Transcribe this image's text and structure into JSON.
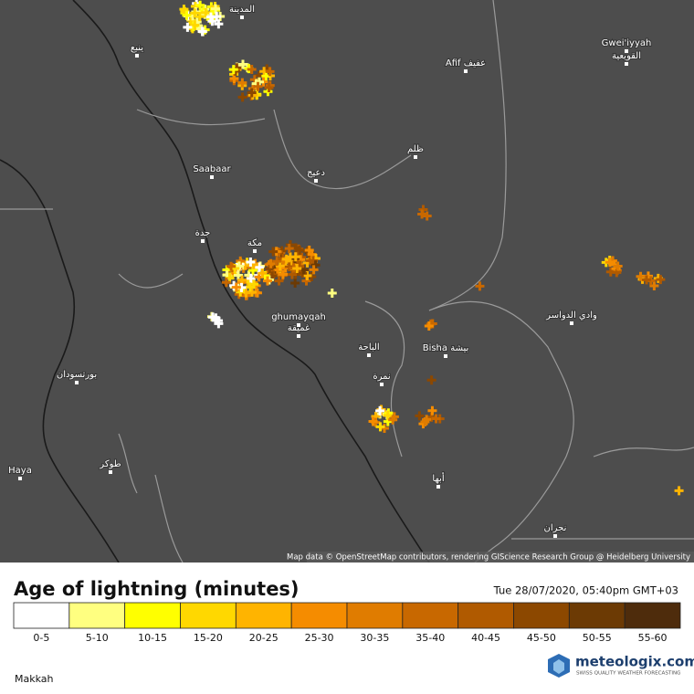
{
  "map": {
    "places": [
      "المدينة",
      "ينبع",
      "Afif عفيف",
      "Gwei'iyyah",
      "القويعية",
      "Saabaar",
      "دعيج",
      "ظلم",
      "جدة",
      "مكة",
      "ghumayqah",
      "غميقة",
      "الباحة",
      "Bisha بيشة",
      "نمرة",
      "وادي الدواسر",
      "بورتسودان",
      "Haya",
      "طوكر",
      "أبها",
      "نجران"
    ],
    "attribution": "Map data © OpenStreetMap contributors, rendering GIScience Research Group @ Heidelberg University"
  },
  "legend": {
    "title": "Age of lightning (minutes)",
    "timestamp": "Tue 28/07/2020, 05:40pm GMT+03",
    "bins": [
      {
        "label": "0-5",
        "color": "#ffffff"
      },
      {
        "label": "5-10",
        "color": "#ffff80"
      },
      {
        "label": "10-15",
        "color": "#ffff00"
      },
      {
        "label": "15-20",
        "color": "#ffd800"
      },
      {
        "label": "20-25",
        "color": "#ffb400"
      },
      {
        "label": "25-30",
        "color": "#f58c00"
      },
      {
        "label": "30-35",
        "color": "#e07c00"
      },
      {
        "label": "35-40",
        "color": "#c86800"
      },
      {
        "label": "40-45",
        "color": "#b05a00"
      },
      {
        "label": "45-50",
        "color": "#8c4800"
      },
      {
        "label": "50-55",
        "color": "#6c3a04"
      },
      {
        "label": "55-60",
        "color": "#4e2c0c"
      }
    ]
  },
  "footer": {
    "region": "Makkah",
    "brand": "meteologix.com",
    "tagline": "SWISS QUALITY WEATHER FORECASTING"
  }
}
